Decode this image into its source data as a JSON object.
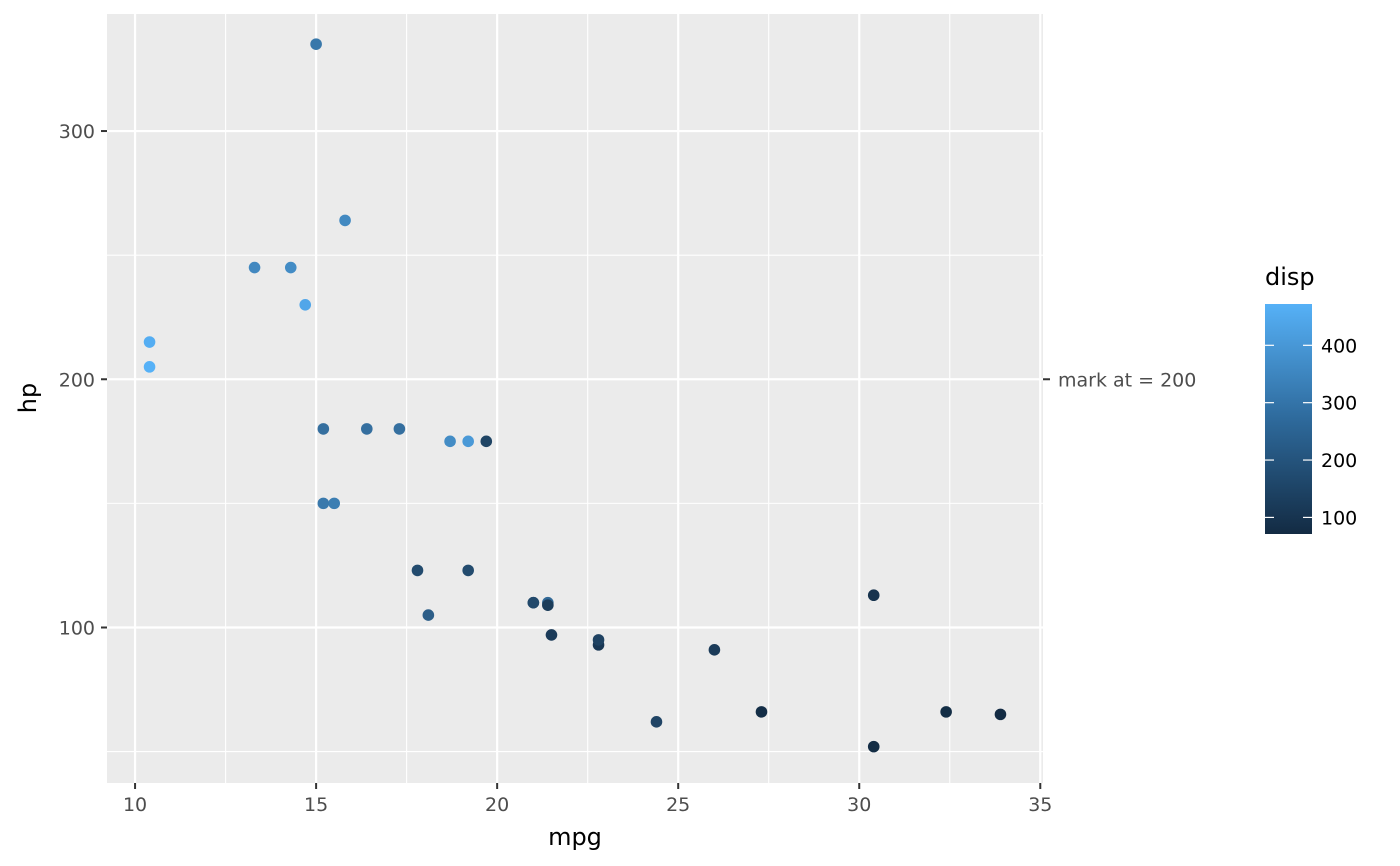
{
  "chart_data": {
    "type": "scatter",
    "title": "",
    "xlabel": "mpg",
    "ylabel": "hp",
    "xlim": [
      9.225,
      35.075
    ],
    "ylim": [
      37.35,
      347.15
    ],
    "xticks": [
      10,
      15,
      20,
      25,
      30,
      35
    ],
    "yticks": [
      100,
      200,
      300
    ],
    "xtick_labels": [
      "10",
      "15",
      "20",
      "25",
      "30",
      "35"
    ],
    "ytick_labels": [
      "100",
      "200",
      "300"
    ],
    "grid": true,
    "legend": {
      "title": "disp",
      "placement": "right",
      "type": "colorbar",
      "range": [
        71.1,
        472
      ],
      "breaks": [
        100,
        200,
        300,
        400
      ],
      "break_labels": [
        "100",
        "200",
        "300",
        "400"
      ],
      "low_color": "#132B43",
      "high_color": "#56B1F7"
    },
    "secondary_axis": {
      "side": "right",
      "break": 200,
      "label": "mark at = 200"
    },
    "points": [
      {
        "x": 21.0,
        "y": 110,
        "color_value": 160
      },
      {
        "x": 21.0,
        "y": 110,
        "color_value": 160
      },
      {
        "x": 22.8,
        "y": 93,
        "color_value": 108
      },
      {
        "x": 21.4,
        "y": 110,
        "color_value": 258
      },
      {
        "x": 18.7,
        "y": 175,
        "color_value": 360
      },
      {
        "x": 18.1,
        "y": 105,
        "color_value": 225
      },
      {
        "x": 14.3,
        "y": 245,
        "color_value": 360
      },
      {
        "x": 24.4,
        "y": 62,
        "color_value": 146.7
      },
      {
        "x": 22.8,
        "y": 95,
        "color_value": 140.8
      },
      {
        "x": 19.2,
        "y": 123,
        "color_value": 167.6
      },
      {
        "x": 17.8,
        "y": 123,
        "color_value": 167.6
      },
      {
        "x": 16.4,
        "y": 180,
        "color_value": 275.8
      },
      {
        "x": 17.3,
        "y": 180,
        "color_value": 275.8
      },
      {
        "x": 15.2,
        "y": 180,
        "color_value": 275.8
      },
      {
        "x": 10.4,
        "y": 205,
        "color_value": 472
      },
      {
        "x": 10.4,
        "y": 215,
        "color_value": 460
      },
      {
        "x": 14.7,
        "y": 230,
        "color_value": 440
      },
      {
        "x": 32.4,
        "y": 66,
        "color_value": 78.7
      },
      {
        "x": 30.4,
        "y": 52,
        "color_value": 75.7
      },
      {
        "x": 33.9,
        "y": 65,
        "color_value": 71.1
      },
      {
        "x": 21.5,
        "y": 97,
        "color_value": 120.1
      },
      {
        "x": 15.5,
        "y": 150,
        "color_value": 318
      },
      {
        "x": 15.2,
        "y": 150,
        "color_value": 304
      },
      {
        "x": 13.3,
        "y": 245,
        "color_value": 350
      },
      {
        "x": 19.2,
        "y": 175,
        "color_value": 400
      },
      {
        "x": 27.3,
        "y": 66,
        "color_value": 79
      },
      {
        "x": 26.0,
        "y": 91,
        "color_value": 120.3
      },
      {
        "x": 30.4,
        "y": 113,
        "color_value": 95.1
      },
      {
        "x": 15.8,
        "y": 264,
        "color_value": 351
      },
      {
        "x": 19.7,
        "y": 175,
        "color_value": 145
      },
      {
        "x": 15.0,
        "y": 335,
        "color_value": 301
      },
      {
        "x": 21.4,
        "y": 109,
        "color_value": 121
      }
    ]
  }
}
